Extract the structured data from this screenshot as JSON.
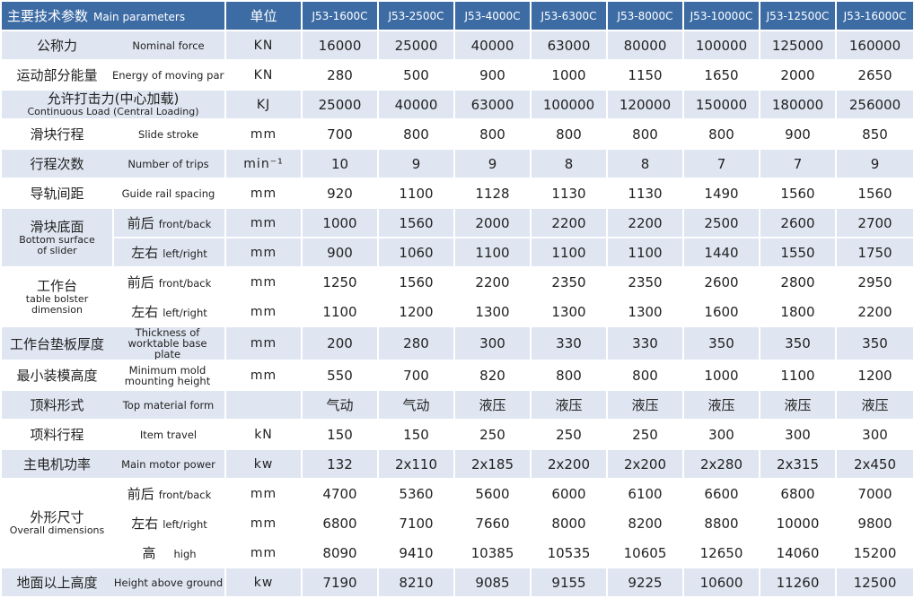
{
  "header": {
    "param_zh": "主要技术参数",
    "param_en": "Main parameters",
    "unit": "单位",
    "models": [
      "J53-1600C",
      "J53-2500C",
      "J53-4000C",
      "J53-6300C",
      "J53-8000C",
      "J53-10000C",
      "J53-12500C",
      "J53-16000C"
    ]
  },
  "rows": {
    "nominal_force": {
      "zh": "公称力",
      "en": "Nominal force",
      "unit": "KN",
      "values": [
        "16000",
        "25000",
        "40000",
        "63000",
        "80000",
        "100000",
        "125000",
        "160000"
      ]
    },
    "energy": {
      "zh": "运动部分能量",
      "en": "Energy of moving parts",
      "unit": "KN",
      "values": [
        "280",
        "500",
        "900",
        "1000",
        "1150",
        "1650",
        "2000",
        "2650"
      ]
    },
    "continuous_load": {
      "zh": "允许打击力(中心加载)",
      "en": "Continuous  Load (Central Loading)",
      "unit": "KJ",
      "values": [
        "25000",
        "40000",
        "63000",
        "100000",
        "120000",
        "150000",
        "180000",
        "256000"
      ]
    },
    "slide_stroke": {
      "zh": "滑块行程",
      "en": "Slide stroke",
      "unit": "mm",
      "values": [
        "700",
        "800",
        "800",
        "800",
        "800",
        "800",
        "900",
        "850"
      ]
    },
    "trips": {
      "zh": "行程次数",
      "en": "Number of trips",
      "unit": "min⁻¹",
      "values": [
        "10",
        "9",
        "9",
        "8",
        "8",
        "7",
        "7",
        "9"
      ]
    },
    "guide_rail": {
      "zh": "导轨间距",
      "en": "Guide rail spacing",
      "unit": "mm",
      "values": [
        "920",
        "1100",
        "1128",
        "1130",
        "1130",
        "1490",
        "1560",
        "1560"
      ]
    },
    "slider_bottom": {
      "zh": "滑块底面",
      "en": "Bottom surface of slider",
      "front_zh": "前后",
      "front_en": "front/back",
      "front_unit": "mm",
      "front_values": [
        "1000",
        "1560",
        "2000",
        "2200",
        "2200",
        "2500",
        "2600",
        "2700"
      ],
      "left_zh": "左右",
      "left_en": "left/right",
      "left_unit": "mm",
      "left_values": [
        "900",
        "1060",
        "1100",
        "1100",
        "1100",
        "1440",
        "1550",
        "1750"
      ]
    },
    "table_bolster": {
      "zh": "工作台",
      "en": "table bolster dimension",
      "front_zh": "前后",
      "front_en": "front/back",
      "front_unit": "mm",
      "front_values": [
        "1250",
        "1560",
        "2200",
        "2350",
        "2350",
        "2600",
        "2800",
        "2950"
      ],
      "left_zh": "左右",
      "left_en": "left/right",
      "left_unit": "mm",
      "left_values": [
        "1100",
        "1200",
        "1300",
        "1300",
        "1300",
        "1600",
        "1800",
        "2200"
      ]
    },
    "worktable_thickness": {
      "zh": "工作台垫板厚度",
      "en": "Thickness of worktable base plate",
      "unit": "mm",
      "values": [
        "200",
        "280",
        "300",
        "330",
        "330",
        "350",
        "350",
        "350"
      ]
    },
    "min_mold_height": {
      "zh": "最小装模高度",
      "en": "Minimum mold mounting height",
      "unit": "mm",
      "values": [
        "550",
        "700",
        "820",
        "800",
        "800",
        "1000",
        "1100",
        "1200"
      ]
    },
    "top_material": {
      "zh": "顶料形式",
      "en": "Top material form",
      "unit": "",
      "values": [
        "气动",
        "气动",
        "液压",
        "液压",
        "液压",
        "液压",
        "液压",
        "液压"
      ]
    },
    "item_travel": {
      "zh": "项料行程",
      "en": "Item travel",
      "unit": "kN",
      "values": [
        "150",
        "150",
        "250",
        "250",
        "250",
        "300",
        "300",
        "300"
      ]
    },
    "motor_power": {
      "zh": "主电机功率",
      "en": "Main motor power",
      "unit": "kw",
      "values": [
        "132",
        "2x110",
        "2x185",
        "2x200",
        "2x200",
        "2x280",
        "2x315",
        "2x450"
      ]
    },
    "overall_dims": {
      "zh": "外形尺寸",
      "en": "Overall dimensions",
      "front_zh": "前后",
      "front_en": "front/back",
      "front_unit": "mm",
      "front_values": [
        "4700",
        "5360",
        "5600",
        "6000",
        "6100",
        "6600",
        "6800",
        "7000"
      ],
      "left_zh": "左右",
      "left_en": "left/right",
      "left_unit": "mm",
      "left_values": [
        "6800",
        "7100",
        "7660",
        "8000",
        "8200",
        "8800",
        "10000",
        "9800"
      ],
      "high_zh": "高",
      "high_en": "high",
      "high_unit": "mm",
      "high_values": [
        "8090",
        "9410",
        "10385",
        "10535",
        "10605",
        "12650",
        "14060",
        "15200"
      ]
    },
    "height_above_ground": {
      "zh": "地面以上高度",
      "en": "Height above ground",
      "unit": "kw",
      "values": [
        "7190",
        "8210",
        "9085",
        "9155",
        "9225",
        "10600",
        "11260",
        "12500"
      ]
    }
  },
  "colors": {
    "header_bg": "#3d6ca5",
    "band": "#dfe6f1",
    "text": "#222222"
  }
}
